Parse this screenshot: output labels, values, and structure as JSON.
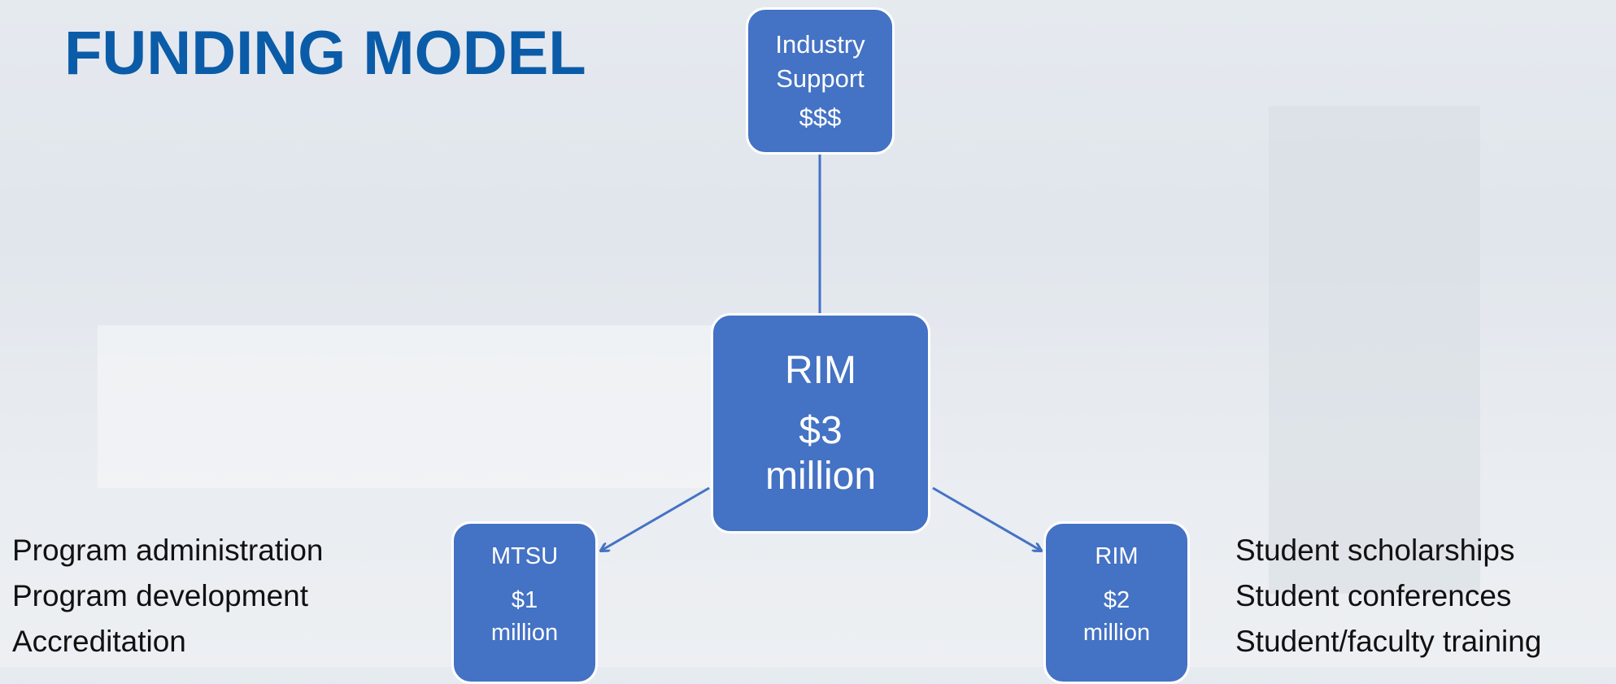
{
  "title": "FUNDING MODEL",
  "nodes": [
    {
      "label": "Industry Support",
      "amount": "$$$"
    },
    {
      "label": "RIM",
      "amount": "$3 million"
    },
    {
      "label": "MTSU",
      "amount": "$1 million"
    },
    {
      "label": "RIM",
      "amount": "$2 million"
    }
  ],
  "left_list": [
    "Program administration",
    "Program development",
    "Accreditation"
  ],
  "right_list": [
    "Student scholarships",
    "Student conferences",
    "Student/faculty training"
  ]
}
